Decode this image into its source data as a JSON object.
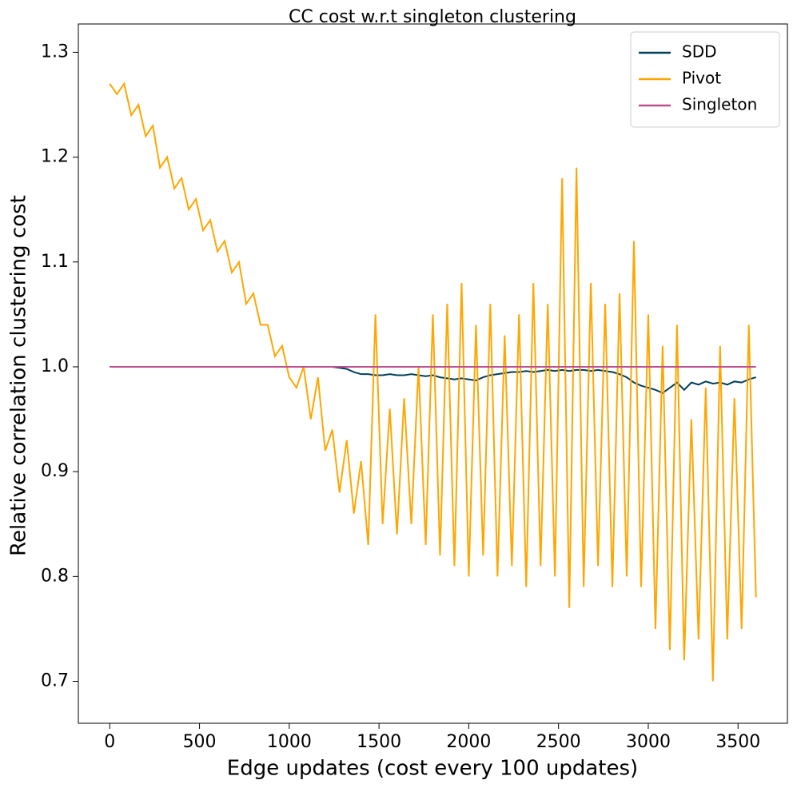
{
  "chart_data": {
    "type": "line",
    "title": "CC cost w.r.t singleton clustering",
    "xlabel": "Edge updates (cost every 100 updates)",
    "ylabel": "Relative correlation clustering cost",
    "x": [
      0,
      40,
      80,
      120,
      160,
      200,
      240,
      280,
      320,
      360,
      400,
      440,
      480,
      520,
      560,
      600,
      640,
      680,
      720,
      760,
      800,
      840,
      880,
      920,
      960,
      1000,
      1040,
      1080,
      1120,
      1160,
      1200,
      1240,
      1280,
      1320,
      1360,
      1400,
      1440,
      1480,
      1520,
      1560,
      1600,
      1640,
      1680,
      1720,
      1760,
      1800,
      1840,
      1880,
      1920,
      1960,
      2000,
      2040,
      2080,
      2120,
      2160,
      2200,
      2240,
      2280,
      2320,
      2360,
      2400,
      2440,
      2480,
      2520,
      2560,
      2600,
      2640,
      2680,
      2720,
      2760,
      2800,
      2840,
      2880,
      2920,
      2960,
      3000,
      3040,
      3080,
      3120,
      3160,
      3200,
      3240,
      3280,
      3320,
      3360,
      3400,
      3440,
      3480,
      3520,
      3560,
      3600
    ],
    "series": [
      {
        "name": "SDD",
        "color": "#003f5c",
        "values": [
          1.0,
          1.0,
          1.0,
          1.0,
          1.0,
          1.0,
          1.0,
          1.0,
          1.0,
          1.0,
          1.0,
          1.0,
          1.0,
          1.0,
          1.0,
          1.0,
          1.0,
          1.0,
          1.0,
          1.0,
          1.0,
          1.0,
          1.0,
          1.0,
          1.0,
          1.0,
          1.0,
          1.0,
          1.0,
          1.0,
          1.0,
          1.0,
          0.999,
          0.998,
          0.995,
          0.993,
          0.993,
          0.992,
          0.992,
          0.993,
          0.992,
          0.992,
          0.993,
          0.992,
          0.991,
          0.992,
          0.99,
          0.989,
          0.988,
          0.989,
          0.988,
          0.987,
          0.99,
          0.992,
          0.993,
          0.994,
          0.995,
          0.995,
          0.996,
          0.995,
          0.996,
          0.997,
          0.996,
          0.997,
          0.996,
          0.997,
          0.997,
          0.996,
          0.997,
          0.996,
          0.995,
          0.993,
          0.99,
          0.985,
          0.982,
          0.98,
          0.978,
          0.975,
          0.98,
          0.985,
          0.978,
          0.985,
          0.983,
          0.986,
          0.984,
          0.985,
          0.983,
          0.986,
          0.985,
          0.988,
          0.99
        ]
      },
      {
        "name": "Pivot",
        "color": "#ffa600",
        "values": [
          1.27,
          1.26,
          1.27,
          1.24,
          1.25,
          1.22,
          1.23,
          1.19,
          1.2,
          1.17,
          1.18,
          1.15,
          1.16,
          1.13,
          1.14,
          1.11,
          1.12,
          1.09,
          1.1,
          1.06,
          1.07,
          1.04,
          1.04,
          1.01,
          1.02,
          0.99,
          0.98,
          1.0,
          0.95,
          0.99,
          0.92,
          0.94,
          0.88,
          0.93,
          0.86,
          0.91,
          0.83,
          1.05,
          0.85,
          0.96,
          0.84,
          0.97,
          0.85,
          1.0,
          0.83,
          1.05,
          0.82,
          1.06,
          0.81,
          1.08,
          0.8,
          1.04,
          0.82,
          1.06,
          0.8,
          1.03,
          0.81,
          1.05,
          0.79,
          1.08,
          0.81,
          1.06,
          0.8,
          1.18,
          0.77,
          1.19,
          0.79,
          1.08,
          0.81,
          1.06,
          0.79,
          1.07,
          0.8,
          1.12,
          0.79,
          1.05,
          0.75,
          1.02,
          0.73,
          1.04,
          0.72,
          0.95,
          0.74,
          0.98,
          0.7,
          1.02,
          0.74,
          0.97,
          0.75,
          1.04,
          0.78
        ]
      },
      {
        "name": "Singleton",
        "color": "#bc5090",
        "values": [
          1,
          1,
          1,
          1,
          1,
          1,
          1,
          1,
          1,
          1,
          1,
          1,
          1,
          1,
          1,
          1,
          1,
          1,
          1,
          1,
          1,
          1,
          1,
          1,
          1,
          1,
          1,
          1,
          1,
          1,
          1,
          1,
          1,
          1,
          1,
          1,
          1,
          1,
          1,
          1,
          1,
          1,
          1,
          1,
          1,
          1,
          1,
          1,
          1,
          1,
          1,
          1,
          1,
          1,
          1,
          1,
          1,
          1,
          1,
          1,
          1,
          1,
          1,
          1,
          1,
          1,
          1,
          1,
          1,
          1,
          1,
          1,
          1,
          1,
          1,
          1,
          1,
          1,
          1,
          1,
          1,
          1,
          1,
          1,
          1,
          1,
          1,
          1,
          1,
          1,
          1
        ]
      }
    ],
    "xlim": [
      -175,
      3775
    ],
    "ylim": [
      0.66,
      1.327
    ],
    "xticks": [
      0,
      500,
      1000,
      1500,
      2000,
      2500,
      3000,
      3500
    ],
    "yticks": [
      0.7,
      0.8,
      0.9,
      {
        "value": 1,
        "label": "1.0"
      },
      1.1,
      1.2,
      1.3
    ],
    "grid": false,
    "legend": "upper right"
  }
}
